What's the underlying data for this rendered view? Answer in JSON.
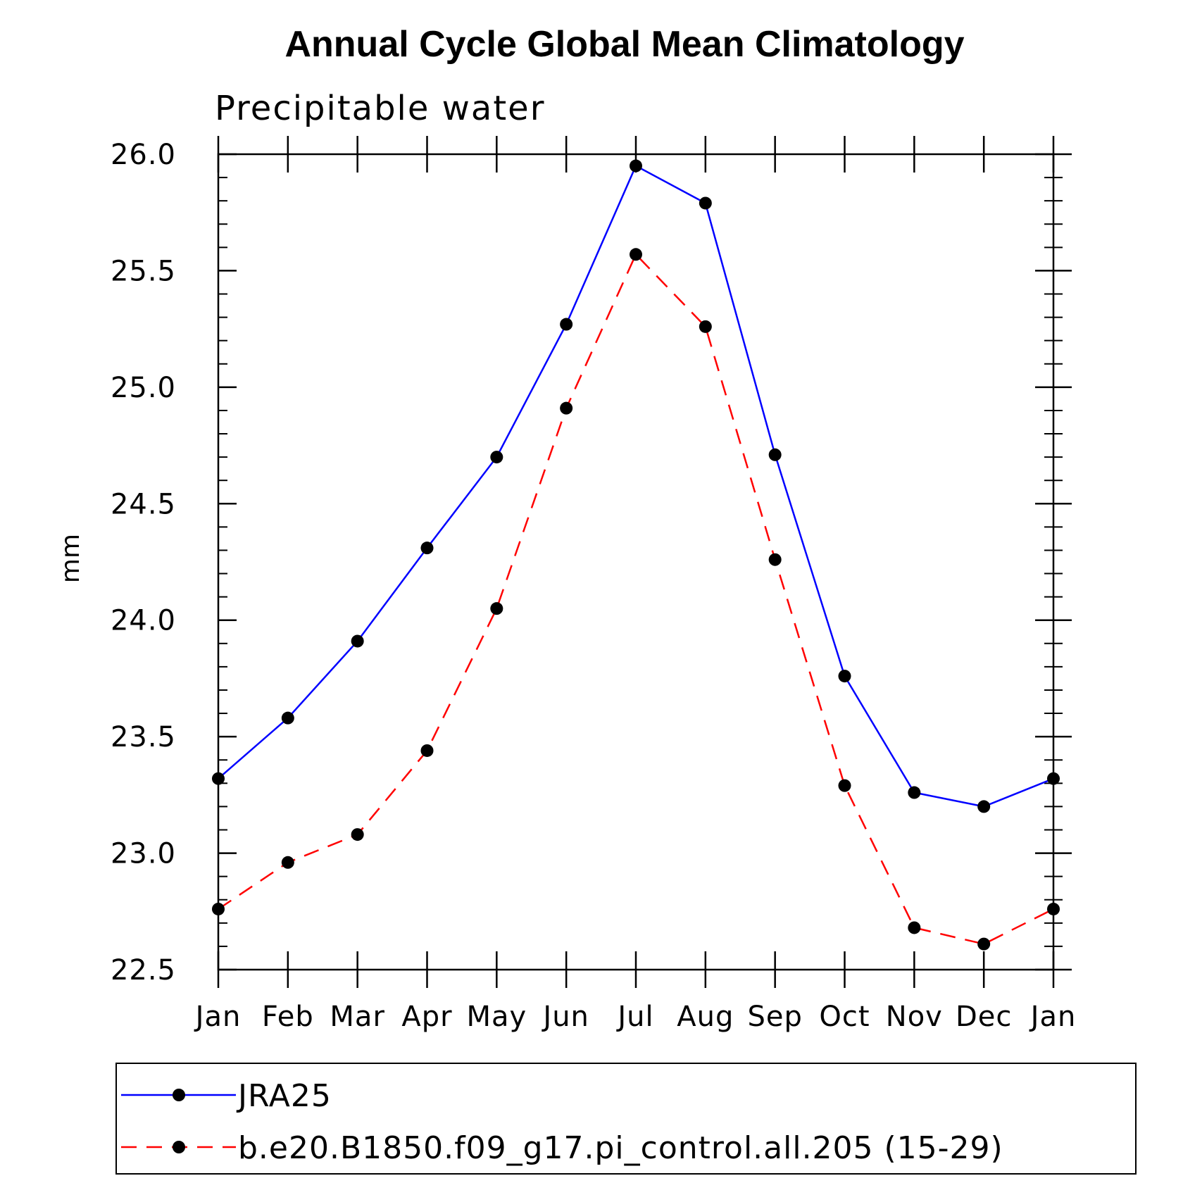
{
  "chart_data": {
    "type": "line",
    "title": "Annual Cycle Global Mean Climatology",
    "subtitle": "Precipitable water",
    "xlabel": "",
    "ylabel": "mm",
    "categories": [
      "Jan",
      "Feb",
      "Mar",
      "Apr",
      "May",
      "Jun",
      "Jul",
      "Aug",
      "Sep",
      "Oct",
      "Nov",
      "Dec",
      "Jan"
    ],
    "ylim": [
      22.5,
      26.0
    ],
    "yticks": [
      "22.5",
      "23.0",
      "23.5",
      "24.0",
      "24.5",
      "25.0",
      "25.5",
      "26.0"
    ],
    "grid": false,
    "legend_position": "bottom",
    "series": [
      {
        "name": "JRA25",
        "color": "#0000ff",
        "dash": "solid",
        "values": [
          23.32,
          23.58,
          23.91,
          24.31,
          24.7,
          25.27,
          25.95,
          25.79,
          24.71,
          23.76,
          23.26,
          23.2,
          23.32
        ]
      },
      {
        "name": "b.e20.B1850.f09_g17.pi_control.all.205 (15-29)",
        "color": "#ff0000",
        "dash": "dashed",
        "values": [
          22.76,
          22.96,
          23.08,
          23.44,
          24.05,
          24.91,
          25.57,
          25.26,
          24.26,
          23.29,
          22.68,
          22.61,
          22.76
        ]
      }
    ]
  }
}
